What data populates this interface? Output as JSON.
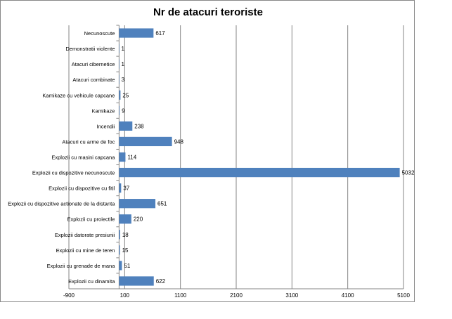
{
  "chart_data": {
    "type": "bar",
    "orientation": "horizontal",
    "title": "Nr de atacuri teroriste",
    "categories": [
      "Necunoscute",
      "Demonstratii violente",
      "Atacuri cibernetice",
      "Atacuri combinate",
      "Kamikaze cu vehicule capcane",
      "Kamikaze",
      "Incendii",
      "Atacuri cu arme de foc",
      "Explozii cu masini capcana",
      "Explozii cu dispozitive necunoscute",
      "Explozii cu dispozitive cu fitil",
      "Explozii cu dispozitive actionate de la distanta",
      "Explozii cu proiectile",
      "Explozii datorate presiunii",
      "Explozii cu mine de teren",
      "Explozii cu grenade de mana",
      "Explozii cu dinamita"
    ],
    "values": [
      617,
      1,
      1,
      3,
      25,
      9,
      238,
      948,
      114,
      5032,
      37,
      651,
      220,
      18,
      15,
      51,
      622
    ],
    "xlim": [
      -900,
      5100
    ],
    "xticks": [
      -900,
      100,
      1100,
      2100,
      3100,
      4100,
      5100
    ],
    "xtick_labels": [
      "-900",
      "100",
      "1100",
      "2100",
      "3100",
      "4100",
      "5100"
    ],
    "bar_origin": 0,
    "grid": "vertical",
    "legend": "none",
    "bar_color": "#4f81bd"
  }
}
